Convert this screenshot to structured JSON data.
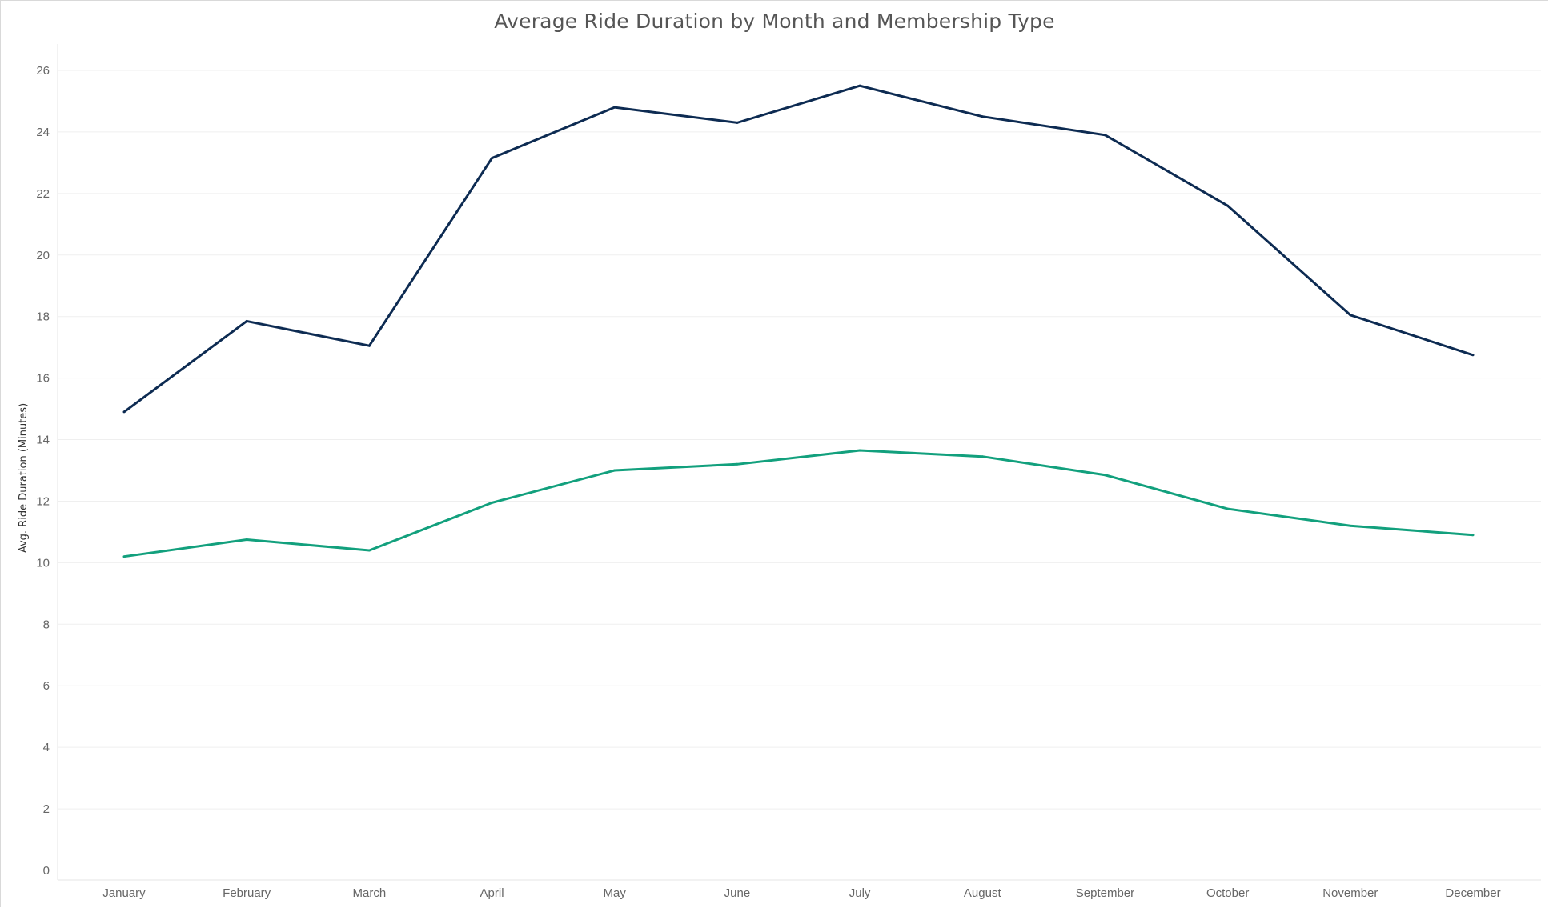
{
  "chart_data": {
    "type": "line",
    "title": "Average Ride Duration by Month and Membership Type",
    "xlabel": "",
    "ylabel": "Avg. Ride Duration (Minutes)",
    "categories": [
      "January",
      "February",
      "March",
      "April",
      "May",
      "June",
      "July",
      "August",
      "September",
      "October",
      "November",
      "December"
    ],
    "ylim": [
      0,
      27
    ],
    "yticks": [
      0,
      2,
      4,
      6,
      8,
      10,
      12,
      14,
      16,
      18,
      20,
      22,
      24,
      26
    ],
    "grid": true,
    "legend": "none",
    "series": [
      {
        "color": "#0d2b52",
        "values": [
          14.9,
          17.85,
          17.05,
          23.15,
          24.8,
          24.3,
          25.5,
          24.5,
          23.9,
          21.6,
          18.05,
          16.75
        ]
      },
      {
        "color": "#12a07d",
        "values": [
          10.2,
          10.75,
          10.4,
          11.95,
          13.0,
          13.2,
          13.65,
          13.45,
          12.85,
          11.75,
          11.2,
          10.9
        ]
      }
    ]
  }
}
